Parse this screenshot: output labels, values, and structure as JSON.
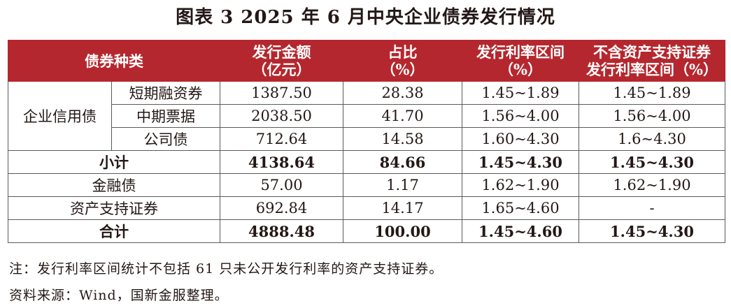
{
  "title": "图表 3  2025 年 6 月中央企业债券发行情况",
  "headers": {
    "bond_type": "债券种类",
    "amount_l1": "发行金额",
    "amount_l2": "（亿元）",
    "share_l1": "占比",
    "share_l2": "（%）",
    "rate_l1": "发行利率区间",
    "rate_l2": "（%）",
    "rate_ex_l1": "不含资产支持证券",
    "rate_ex_l2": "发行利率区间（%）"
  },
  "rows": {
    "group_label": "企业信用债",
    "r1": {
      "type": "短期融资券",
      "amount": "1387.50",
      "share": "28.38",
      "rate": "1.45~1.89",
      "rate_ex": "1.45~1.89"
    },
    "r2": {
      "type": "中期票据",
      "amount": "2038.50",
      "share": "41.70",
      "rate": "1.56~4.00",
      "rate_ex": "1.56~4.00"
    },
    "r3": {
      "type": "公司债",
      "amount": "712.64",
      "share": "14.58",
      "rate": "1.60~4.30",
      "rate_ex": "1.6~4.30"
    },
    "subtotal": {
      "type": "小计",
      "amount": "4138.64",
      "share": "84.66",
      "rate": "1.45~4.30",
      "rate_ex": "1.45~4.30"
    },
    "fin": {
      "type": "金融债",
      "amount": "57.00",
      "share": "1.17",
      "rate": "1.62~1.90",
      "rate_ex": "1.62~1.90"
    },
    "abs": {
      "type": "资产支持证券",
      "amount": "692.84",
      "share": "14.17",
      "rate": "1.65~4.60",
      "rate_ex": "-"
    },
    "total": {
      "type": "合计",
      "amount": "4888.48",
      "share": "100.00",
      "rate": "1.45~4.60",
      "rate_ex": "1.45~4.30"
    }
  },
  "notes": {
    "note": "注：发行利率区间统计不包括 61 只未公开发行利率的资产支持证券。",
    "source": "资料来源：Wind，国新金服整理。"
  },
  "colors": {
    "header_bg": "#b5272e",
    "header_text": "#ffffff",
    "grid": "#5a5a5a"
  }
}
